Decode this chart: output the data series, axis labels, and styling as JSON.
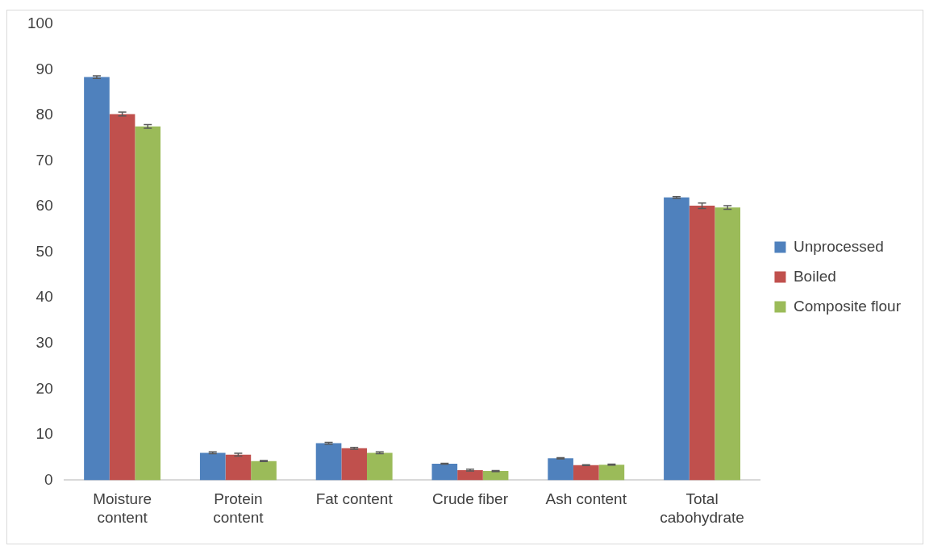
{
  "chart_data": {
    "type": "bar",
    "categories": [
      "Moisture content",
      "Protein content",
      "Fat content",
      "Crude fiber",
      "Ash content",
      "Total cabohydrate"
    ],
    "series": [
      {
        "name": "Unprocessed",
        "color": "#4f81bd",
        "values": [
          88.4,
          6.0,
          8.1,
          3.6,
          4.8,
          62.0
        ],
        "errors": [
          0.3,
          0.2,
          0.2,
          0.1,
          0.15,
          0.2
        ]
      },
      {
        "name": "Boiled",
        "color": "#c0504d",
        "values": [
          80.3,
          5.6,
          7.0,
          2.2,
          3.3,
          60.2
        ],
        "errors": [
          0.4,
          0.3,
          0.2,
          0.2,
          0.1,
          0.6
        ]
      },
      {
        "name": "Composite flour",
        "color": "#9bbb59",
        "values": [
          77.6,
          4.2,
          6.0,
          2.0,
          3.4,
          59.8
        ],
        "errors": [
          0.4,
          0.1,
          0.2,
          0.1,
          0.1,
          0.4
        ]
      }
    ],
    "ylim": [
      0,
      100
    ],
    "yticks": [
      0,
      10,
      20,
      30,
      40,
      50,
      60,
      70,
      80,
      90,
      100
    ],
    "grid": false,
    "legend": "right"
  }
}
